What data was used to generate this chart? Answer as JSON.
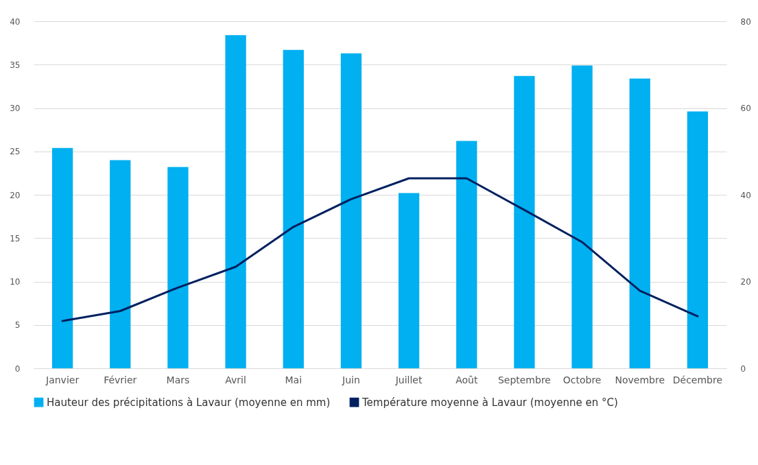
{
  "chart_data": {
    "type": "bar",
    "categories": [
      "Janvier",
      "Février",
      "Mars",
      "Avril",
      "Mai",
      "Juin",
      "Juillet",
      "Août",
      "Septembre",
      "Octobre",
      "Novembre",
      "Décembre"
    ],
    "series": [
      {
        "name": "Hauteur des précipitations à Lavaur  (moyenne en mm)",
        "color": "#00b0f0",
        "values": [
          25.4,
          24.0,
          23.2,
          38.4,
          36.7,
          36.3,
          20.2,
          26.2,
          33.7,
          34.9,
          33.4,
          29.6
        ]
      },
      {
        "name": "Température moyenne  à Lavaur  (moyenne en °C)",
        "type": "line",
        "axis": "y2",
        "color": "#002060",
        "values": [
          10.9,
          13.2,
          18.6,
          23.4,
          32.6,
          39.0,
          43.8,
          43.8,
          36.5,
          29.1,
          17.9,
          12.0
        ]
      }
    ],
    "ylim": [
      0,
      40
    ],
    "yticks": [
      0,
      5,
      10,
      15,
      20,
      25,
      30,
      35,
      40
    ],
    "y2lim": [
      0,
      80
    ],
    "y2ticks": [
      0,
      20,
      40,
      60,
      80
    ],
    "grid": "y",
    "legend": "bottom"
  }
}
